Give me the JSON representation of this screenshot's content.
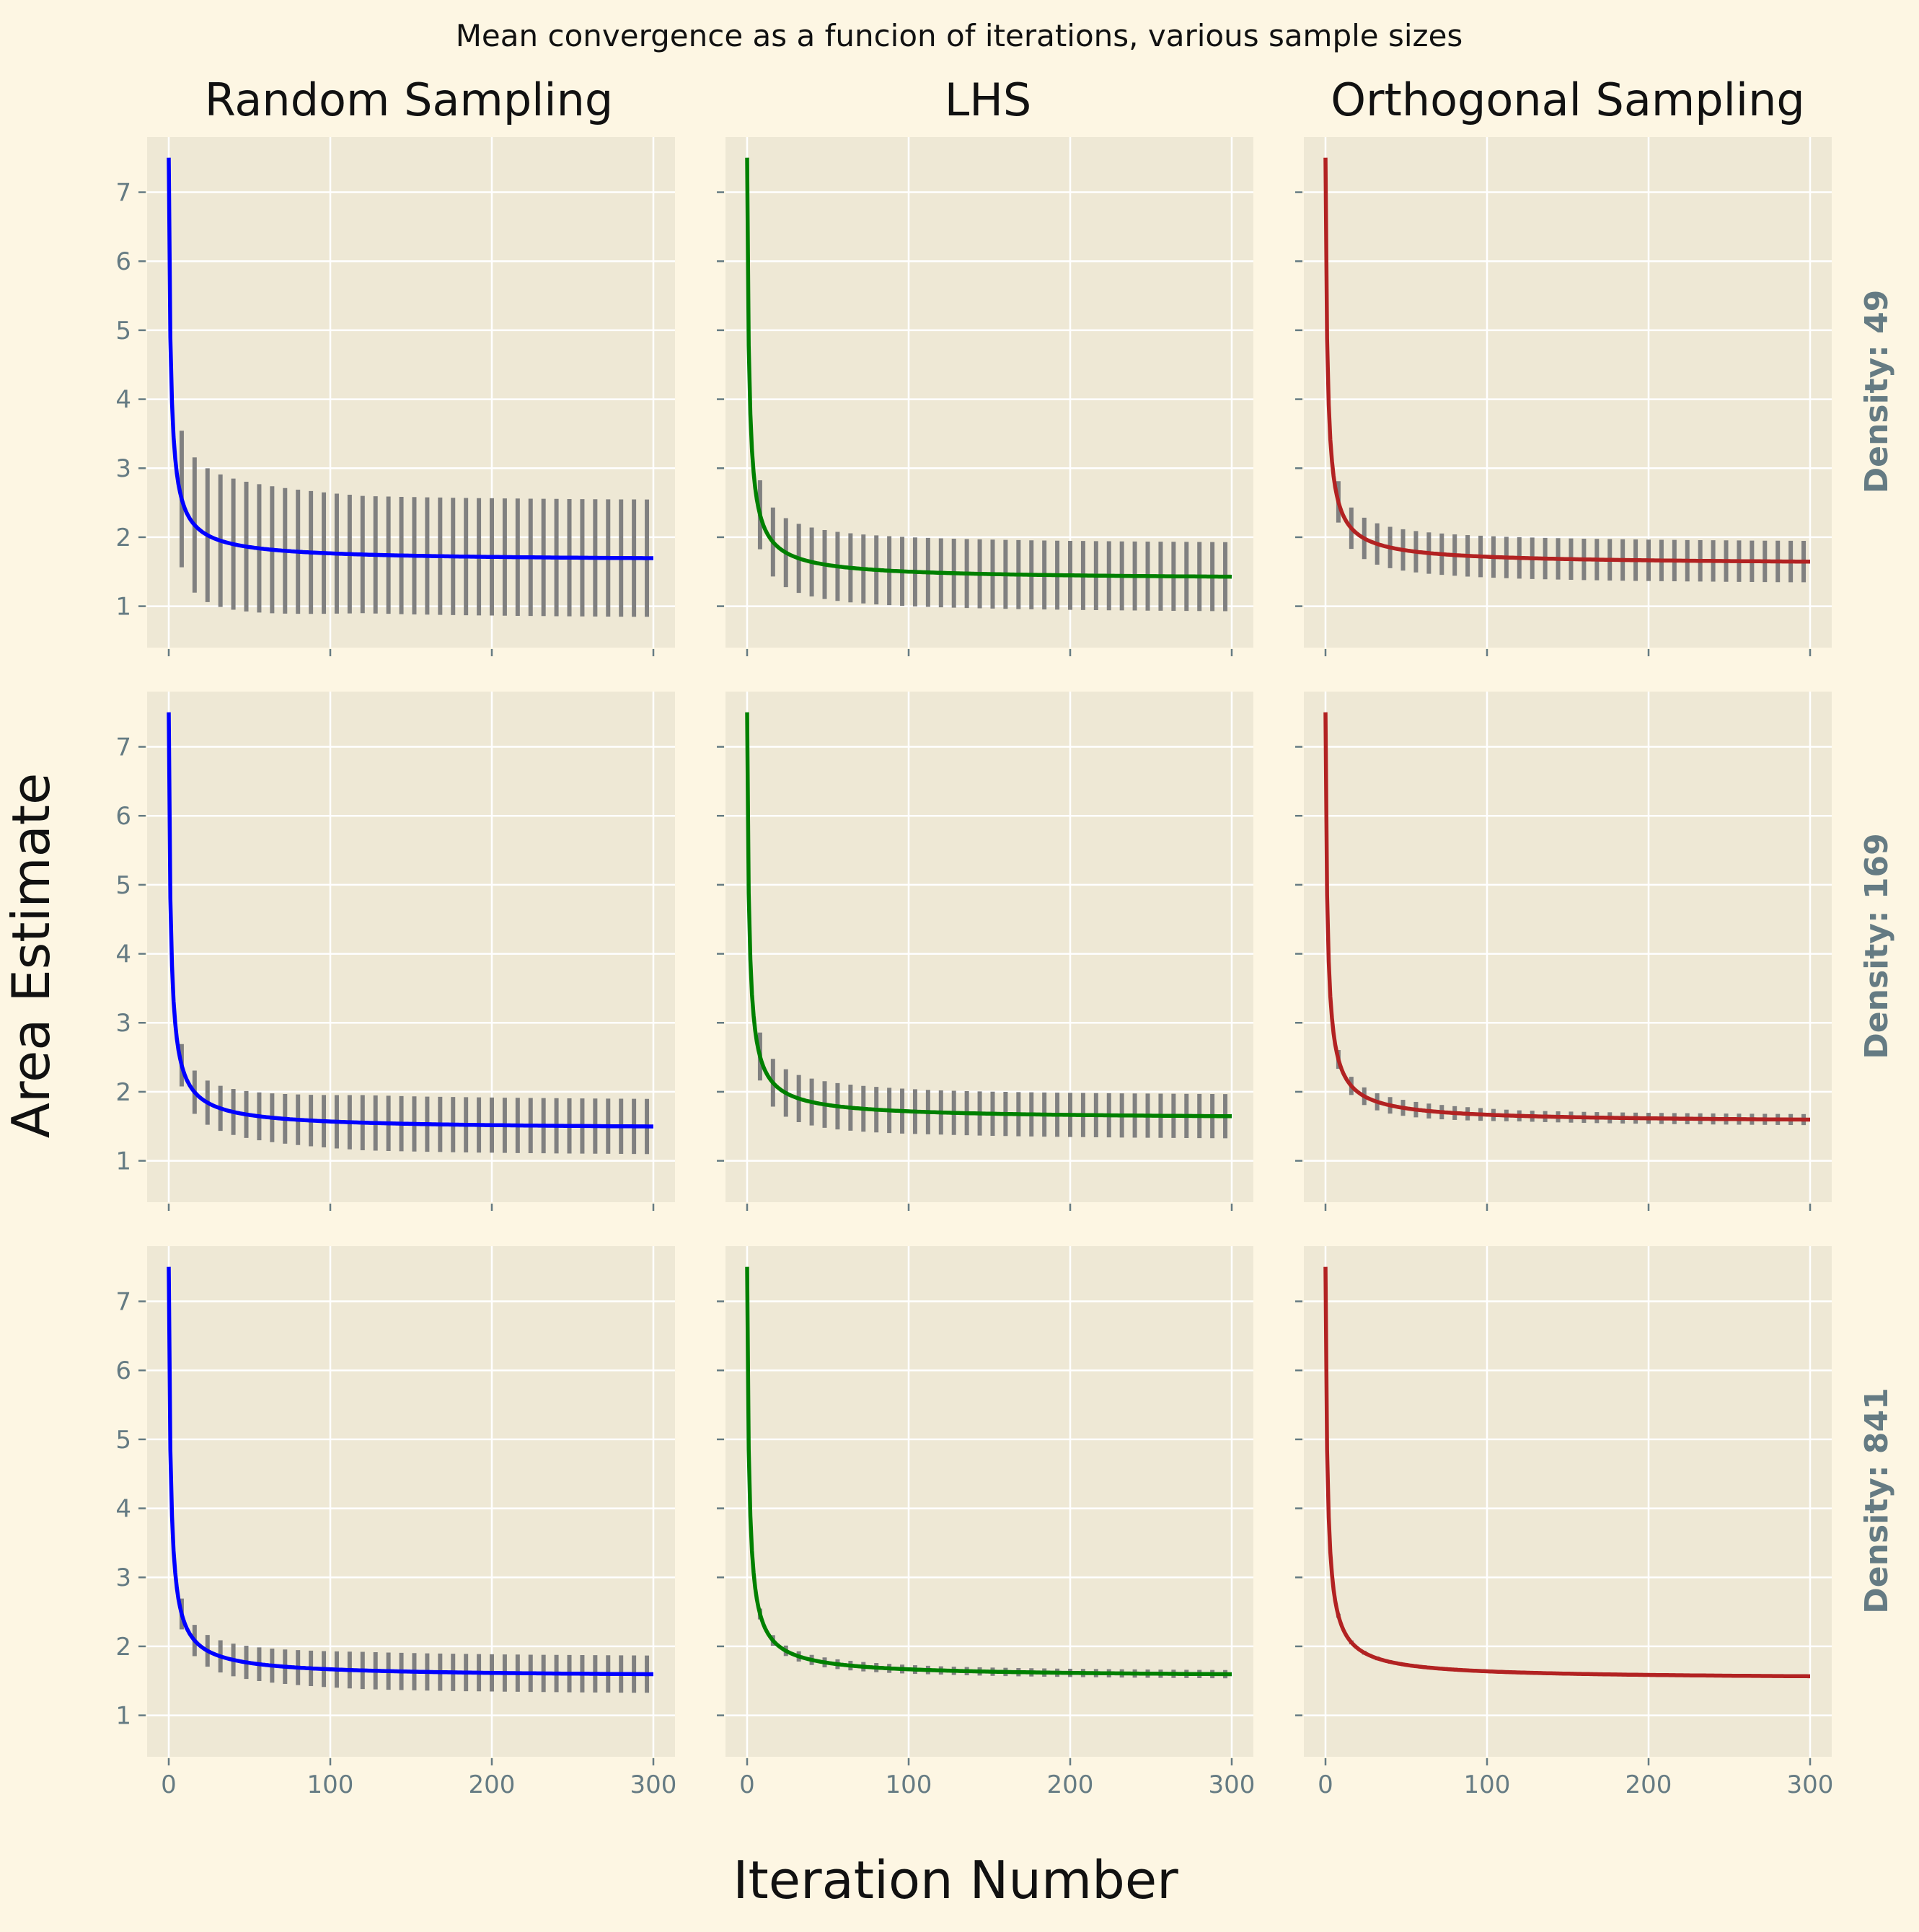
{
  "figure": {
    "suptitle": "Mean convergence as a funcion of iterations, various sample sizes",
    "xlabel": "Iteration Number",
    "ylabel": "Area Estimate",
    "column_titles": [
      "Random Sampling",
      "LHS",
      "Orthogonal Sampling"
    ],
    "row_labels": [
      "Density: 49",
      "Density: 169",
      "Density: 841"
    ]
  },
  "colors": {
    "background": "#fdf6e3",
    "panel": "#eee8d5",
    "grid": "#ffffff",
    "tick_text": "#657b83",
    "errorbar": "#808080",
    "series": [
      "#0000ff",
      "#008000",
      "#b22222"
    ]
  },
  "chart_data": {
    "type": "line",
    "x_range": [
      0,
      300
    ],
    "ylim": [
      0.4,
      7.8
    ],
    "xticks": [
      0,
      100,
      200,
      300
    ],
    "yticks": [
      1,
      2,
      3,
      4,
      5,
      6,
      7
    ],
    "grid": true,
    "x_step": 1,
    "errorbar_every": 8,
    "panels": [
      {
        "row": 0,
        "col": 0,
        "method": "Random Sampling",
        "density": 49,
        "start": 7.5,
        "final": 1.65,
        "err_start": 1.0,
        "err_end": 0.85
      },
      {
        "row": 0,
        "col": 1,
        "method": "LHS",
        "density": 49,
        "start": 7.5,
        "final": 1.38,
        "err_start": 0.5,
        "err_end": 0.5
      },
      {
        "row": 0,
        "col": 2,
        "method": "Orthogonal Sampling",
        "density": 49,
        "start": 7.5,
        "final": 1.6,
        "err_start": 0.3,
        "err_end": 0.3
      },
      {
        "row": 1,
        "col": 0,
        "method": "Random Sampling",
        "density": 169,
        "start": 7.5,
        "final": 1.45,
        "err_start": 0.3,
        "err_end": 0.4
      },
      {
        "row": 1,
        "col": 1,
        "method": "LHS",
        "density": 169,
        "start": 7.5,
        "final": 1.6,
        "err_start": 0.35,
        "err_end": 0.32
      },
      {
        "row": 1,
        "col": 2,
        "method": "Orthogonal Sampling",
        "density": 169,
        "start": 7.5,
        "final": 1.55,
        "err_start": 0.14,
        "err_end": 0.08
      },
      {
        "row": 2,
        "col": 0,
        "method": "Random Sampling",
        "density": 841,
        "start": 7.5,
        "final": 1.55,
        "err_start": 0.22,
        "err_end": 0.27
      },
      {
        "row": 2,
        "col": 1,
        "method": "LHS",
        "density": 841,
        "start": 7.5,
        "final": 1.55,
        "err_start": 0.08,
        "err_end": 0.06
      },
      {
        "row": 2,
        "col": 2,
        "method": "Orthogonal Sampling",
        "density": 841,
        "start": 7.5,
        "final": 1.52,
        "err_start": 0.03,
        "err_end": 0.02
      }
    ]
  }
}
